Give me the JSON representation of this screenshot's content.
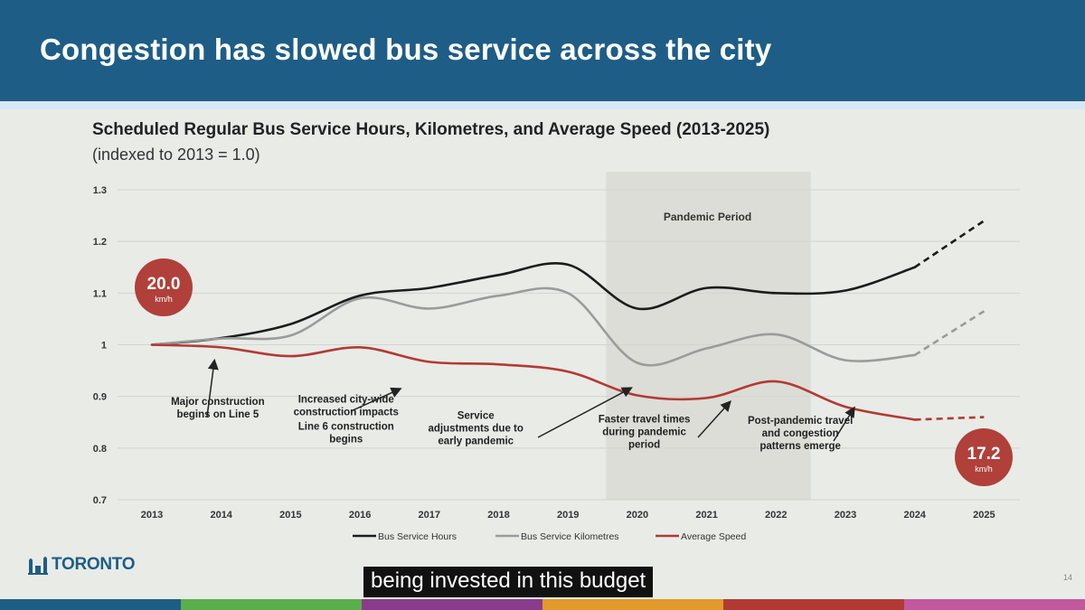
{
  "header": {
    "title": "Congestion has slowed bus service across the city"
  },
  "chart_data": {
    "type": "line",
    "title": "Scheduled Regular Bus Service Hours, Kilometres, and Average Speed (2013-2025)",
    "subtitle": "(indexed to 2013 = 1.0)",
    "x": [
      "2013",
      "2014",
      "2015",
      "2016",
      "2017",
      "2018",
      "2019",
      "2020",
      "2021",
      "2022",
      "2023",
      "2024",
      "2025"
    ],
    "ylim": [
      0.7,
      1.3
    ],
    "yticks": [
      "0.7",
      "0.8",
      "0.9",
      "1",
      "1.1",
      "1.2",
      "1.3"
    ],
    "grid": true,
    "legend_position": "bottom",
    "series": [
      {
        "name": "Bus Service Hours",
        "color": "#1c1c1c",
        "values": [
          1.0,
          1.013,
          1.04,
          1.095,
          1.11,
          1.135,
          1.155,
          1.07,
          1.11,
          1.1,
          1.105,
          1.15,
          1.24
        ],
        "projected_from_index": 11
      },
      {
        "name": "Bus Service Kilometres",
        "color": "#9b9b9b",
        "values": [
          1.0,
          1.012,
          1.018,
          1.09,
          1.07,
          1.095,
          1.1,
          0.965,
          0.993,
          1.02,
          0.97,
          0.98,
          1.065
        ],
        "projected_from_index": 11
      },
      {
        "name": "Average Speed",
        "color": "#b23a34",
        "values": [
          1.0,
          0.995,
          0.978,
          0.995,
          0.967,
          0.962,
          0.948,
          0.902,
          0.897,
          0.929,
          0.88,
          0.855,
          0.86
        ],
        "projected_from_index": 11
      }
    ],
    "shaded_region": {
      "label": "Pandemic Period",
      "from": 2019.55,
      "to": 2022.5
    },
    "speed_start": {
      "value": "20.0",
      "unit": "km/h"
    },
    "speed_end": {
      "value": "17.2",
      "unit": "km/h"
    },
    "annotations": [
      {
        "lines": [
          "Major construction",
          "begins on Line 5"
        ],
        "x": 2013.95,
        "y": 0.8835,
        "arrow_to": [
          2013.9,
          0.968
        ]
      },
      {
        "lines": [
          "Increased city-wide",
          "construction impacts"
        ],
        "x": 2015.8,
        "y": 0.8877,
        "arrow_to": [
          2016.57,
          0.914
        ]
      },
      {
        "lines": [
          "Line 6 construction",
          "begins"
        ],
        "x": 2015.8,
        "y": 0.8358,
        "arrow_to": null
      },
      {
        "lines": [
          "Service",
          "adjustments due to",
          "early pandemic"
        ],
        "x": 2017.67,
        "y": 0.8569,
        "arrow_to": [
          2019.9,
          0.9155
        ]
      },
      {
        "lines": [
          "Faster travel times",
          "during pandemic",
          "period"
        ],
        "x": 2020.1,
        "y": 0.8492,
        "arrow_to": [
          2021.33,
          0.8885
        ]
      },
      {
        "lines": [
          "Post-pandemic travel",
          "and congestion",
          "patterns emerge"
        ],
        "x": 2022.35,
        "y": 0.8473,
        "arrow_to": [
          2023.12,
          0.8765
        ]
      }
    ]
  },
  "footer": {
    "logo_text": "TORONTO",
    "caption": "being invested in this budget",
    "page_number": "14",
    "color_bar": [
      "#1e5d86",
      "#5aae4b",
      "#8a3c8c",
      "#e19a2b",
      "#b23a34",
      "#c2589e"
    ]
  }
}
